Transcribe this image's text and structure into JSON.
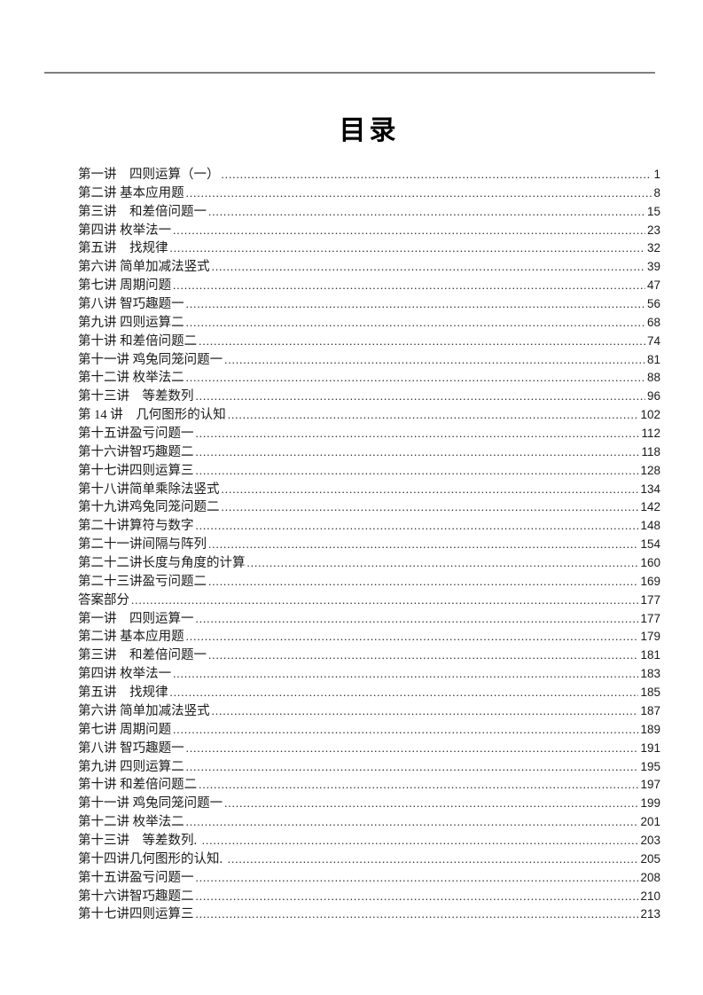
{
  "page": {
    "title": "目录"
  },
  "toc": {
    "entries": [
      {
        "label": "第一讲　四则运算（一）",
        "page": "1"
      },
      {
        "label": "第二讲 基本应用题",
        "page": "8"
      },
      {
        "label": "第三讲　和差倍问题一",
        "page": "15"
      },
      {
        "label": "第四讲 枚举法一",
        "page": "23"
      },
      {
        "label": "第五讲　找规律",
        "page": "32"
      },
      {
        "label": "第六讲 简单加减法竖式",
        "page": "39"
      },
      {
        "label": "第七讲 周期问题",
        "page": "47"
      },
      {
        "label": "第八讲 智巧趣题一",
        "page": "56"
      },
      {
        "label": "第九讲 四则运算二",
        "page": "68"
      },
      {
        "label": "第十讲 和差倍问题二",
        "page": "74"
      },
      {
        "label": "第十一讲 鸡兔同笼问题一",
        "page": "81"
      },
      {
        "label": "第十二讲 枚举法二",
        "page": "88"
      },
      {
        "label": "第十三讲　等差数列",
        "page": "96"
      },
      {
        "label": "第 14 讲　几何图形的认知",
        "page": "102"
      },
      {
        "label": "第十五讲盈亏问题一",
        "page": "112"
      },
      {
        "label": "第十六讲智巧趣题二",
        "page": "118"
      },
      {
        "label": "第十七讲四则运算三",
        "page": "128"
      },
      {
        "label": "第十八讲简单乘除法竖式",
        "page": "134"
      },
      {
        "label": "第十九讲鸡兔同笼问题二",
        "page": "142"
      },
      {
        "label": "第二十讲算符与数字",
        "page": "148"
      },
      {
        "label": "第二十一讲间隔与阵列",
        "page": "154"
      },
      {
        "label": "第二十二讲长度与角度的计算",
        "page": "160"
      },
      {
        "label": "第二十三讲盈亏问题二",
        "page": "169"
      },
      {
        "label": "答案部分",
        "page": "177"
      },
      {
        "label": "第一讲　四则运算一",
        "page": "177"
      },
      {
        "label": "第二讲 基本应用题",
        "page": "179"
      },
      {
        "label": "第三讲　和差倍问题一",
        "page": "181"
      },
      {
        "label": "第四讲 枚举法一",
        "page": "183"
      },
      {
        "label": "第五讲　找规律",
        "page": "185"
      },
      {
        "label": "第六讲 简单加减法竖式",
        "page": "187"
      },
      {
        "label": "第七讲 周期问题",
        "page": "189"
      },
      {
        "label": "第八讲 智巧趣题一",
        "page": "191"
      },
      {
        "label": "第九讲 四则运算二",
        "page": "195"
      },
      {
        "label": "第十讲 和差倍问题二",
        "page": "197"
      },
      {
        "label": "第十一讲 鸡兔同笼问题一",
        "page": "199"
      },
      {
        "label": "第十二讲 枚举法二",
        "page": "201"
      },
      {
        "label": "第十三讲　等差数列. ",
        "page": "203"
      },
      {
        "label": "第十四讲几何图形的认知. ",
        "page": "205"
      },
      {
        "label": "第十五讲盈亏问题一",
        "page": "208"
      },
      {
        "label": "第十六讲智巧趣题二",
        "page": "210"
      },
      {
        "label": "第十七讲四则运算三",
        "page": "213"
      }
    ]
  }
}
